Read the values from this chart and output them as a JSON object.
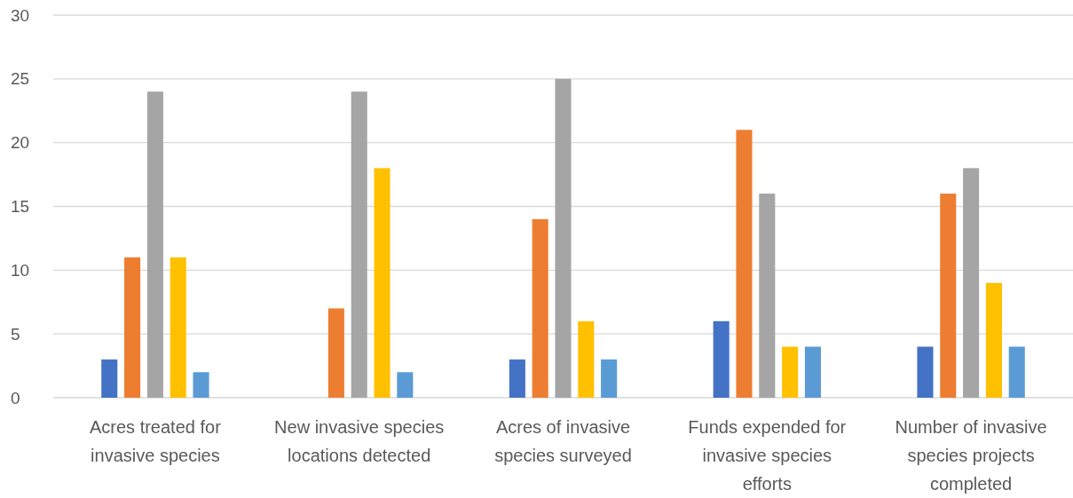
{
  "chart_data": {
    "type": "bar",
    "categories": [
      "Acres treated for invasive species",
      "New invasive species locations detected",
      "Acres of invasive species surveyed",
      "Funds expended for invasive species efforts",
      "Number of invasive species projects completed"
    ],
    "series": [
      {
        "color": "#4472c4",
        "values": [
          3,
          null,
          3,
          6,
          4
        ]
      },
      {
        "color": "#ed7d31",
        "values": [
          11,
          7,
          14,
          21,
          16
        ]
      },
      {
        "color": "#a5a5a5",
        "values": [
          24,
          24,
          25,
          16,
          18
        ]
      },
      {
        "color": "#ffc000",
        "values": [
          11,
          18,
          6,
          4,
          9
        ]
      },
      {
        "color": "#5b9bd5",
        "values": [
          2,
          2,
          3,
          4,
          4
        ]
      }
    ],
    "ylim": [
      0,
      30
    ],
    "yticks": [
      0,
      5,
      10,
      15,
      20,
      25,
      30
    ],
    "grid": "y"
  }
}
